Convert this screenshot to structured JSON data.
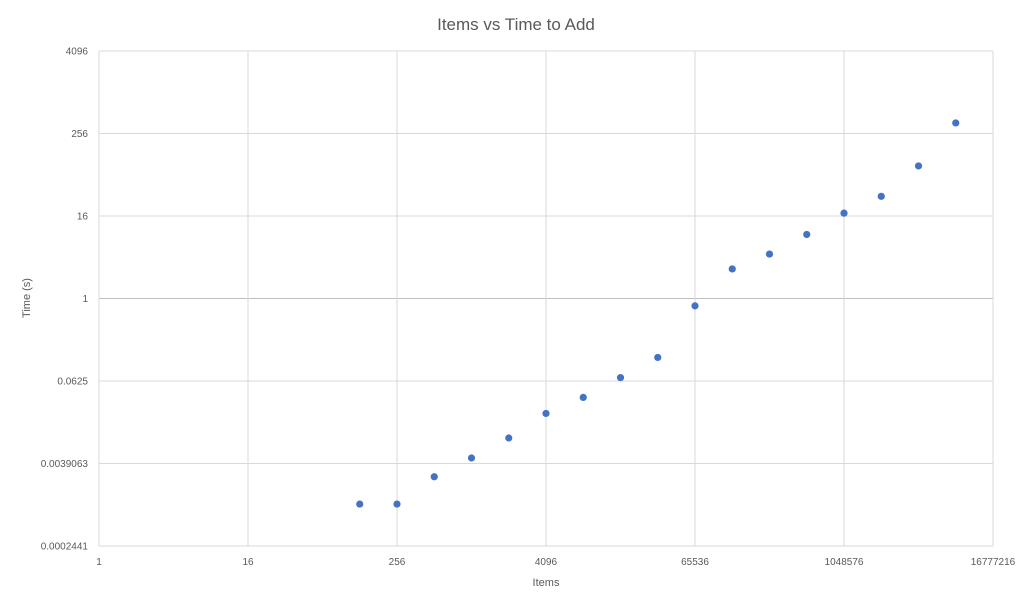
{
  "chart_data": {
    "type": "scatter",
    "title": "Items vs Time to Add",
    "xlabel": "Items",
    "ylabel": "Time (s)",
    "x_scale": "log2",
    "y_scale": "log2",
    "xlim": [
      1,
      16777216
    ],
    "ylim": [
      0.0002441,
      4096
    ],
    "x_ticks": [
      {
        "value": 1,
        "label": "1"
      },
      {
        "value": 16,
        "label": "16"
      },
      {
        "value": 256,
        "label": "256"
      },
      {
        "value": 4096,
        "label": "4096"
      },
      {
        "value": 65536,
        "label": "65536"
      },
      {
        "value": 1048576,
        "label": "1048576"
      },
      {
        "value": 16777216,
        "label": "16777216"
      }
    ],
    "y_ticks": [
      {
        "value": 0.0002441,
        "label": "0.0002441"
      },
      {
        "value": 0.0039063,
        "label": "0.0039063"
      },
      {
        "value": 0.0625,
        "label": "0.0625"
      },
      {
        "value": 1,
        "label": "1"
      },
      {
        "value": 16,
        "label": "16"
      },
      {
        "value": 256,
        "label": "256"
      },
      {
        "value": 4096,
        "label": "4096"
      }
    ],
    "grid": true,
    "legend": "none",
    "series": [
      {
        "color": "#4472C4",
        "points": [
          {
            "x": 128,
            "y": 0.001
          },
          {
            "x": 256,
            "y": 0.001
          },
          {
            "x": 512,
            "y": 0.0025
          },
          {
            "x": 1024,
            "y": 0.0047
          },
          {
            "x": 2048,
            "y": 0.0092
          },
          {
            "x": 4096,
            "y": 0.021
          },
          {
            "x": 8192,
            "y": 0.036
          },
          {
            "x": 16384,
            "y": 0.07
          },
          {
            "x": 32768,
            "y": 0.138
          },
          {
            "x": 65536,
            "y": 0.78
          },
          {
            "x": 131072,
            "y": 2.7
          },
          {
            "x": 262144,
            "y": 4.45
          },
          {
            "x": 524288,
            "y": 8.6
          },
          {
            "x": 1048576,
            "y": 17.6
          },
          {
            "x": 2097152,
            "y": 31
          },
          {
            "x": 4194304,
            "y": 86
          },
          {
            "x": 8388608,
            "y": 365
          }
        ]
      }
    ]
  },
  "colors": {
    "marker": "#4472C4",
    "grid": "#d9d9d9",
    "text": "#595959"
  }
}
